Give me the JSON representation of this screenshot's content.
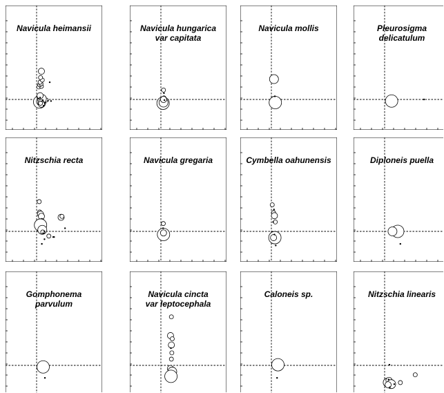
{
  "chart_data": [
    {
      "type": "scatter",
      "title_lines": [
        "Navicula heimansii"
      ],
      "x": [
        0.06,
        0.1,
        0.14,
        0.2,
        0.24,
        0.28,
        0.34,
        0.44,
        0.52,
        0.66,
        0.1,
        0.18,
        0.22,
        0.14,
        0.2,
        0.16,
        0.26,
        0.18,
        0.22,
        0.24,
        0.2,
        0.22,
        0.1,
        0.16,
        0.18,
        0.08,
        0.16,
        0.6,
        0.28,
        0.32
      ],
      "y": [
        0.0,
        -0.05,
        -0.08,
        -0.06,
        -0.04,
        -0.04,
        -0.03,
        -0.02,
        -0.04,
        -0.05,
        0.4,
        0.45,
        0.42,
        0.47,
        0.5,
        0.55,
        0.62,
        0.7,
        0.9,
        0.02,
        -0.1,
        -0.15,
        0.08,
        0.12,
        -0.12,
        0.03,
        0.06,
        0.55,
        -0.02,
        -0.2
      ],
      "size": [
        3,
        4,
        5,
        4,
        3,
        3,
        2,
        2,
        1,
        1,
        2,
        2,
        2,
        2,
        2,
        2,
        2,
        2,
        3,
        4,
        3,
        3,
        2,
        3,
        2,
        1,
        1,
        1,
        1,
        1
      ]
    },
    {
      "type": "scatter",
      "title_lines": [
        "Navicula hungarica",
        "var capitata"
      ],
      "x": [
        0.1,
        0.12,
        0.14,
        0.12,
        0.14,
        0.12,
        0.16
      ],
      "y": [
        -0.12,
        -0.1,
        0.05,
        0.3,
        0.2,
        0.0,
        -0.02
      ],
      "size": [
        5,
        4,
        2,
        2,
        1,
        3,
        1
      ]
    },
    {
      "type": "scatter",
      "title_lines": [
        "Navicula mollis"
      ],
      "x": [
        0.12,
        0.12,
        0.18,
        0.16
      ],
      "y": [
        0.65,
        0.0,
        -0.1,
        0.1
      ],
      "size": [
        4,
        3,
        5,
        1
      ]
    },
    {
      "type": "scatter",
      "title_lines": [
        "Pleurosigma",
        "delicatulum"
      ],
      "x": [
        0.32,
        1.8
      ],
      "y": [
        -0.05,
        0.0
      ],
      "size": [
        5,
        1
      ]
    },
    {
      "type": "scatter",
      "title_lines": [
        "Nitzschia recta"
      ],
      "x": [
        0.12,
        0.14,
        0.18,
        0.22,
        0.24,
        0.18,
        0.26,
        0.28,
        0.3,
        0.36,
        0.56,
        0.76,
        1.12,
        1.16,
        1.3,
        0.36,
        0.24,
        0.8
      ],
      "y": [
        0.95,
        0.62,
        0.55,
        0.48,
        0.35,
        0.2,
        0.05,
        -0.02,
        -0.06,
        0.0,
        -0.15,
        -0.18,
        0.45,
        0.48,
        0.1,
        -0.25,
        -0.4,
        -0.18
      ],
      "size": [
        2,
        2,
        3,
        3,
        2,
        5,
        4,
        2,
        1,
        1,
        2,
        1,
        3,
        2,
        1,
        1,
        1,
        1
      ]
    },
    {
      "type": "scatter",
      "title_lines": [
        "Navicula gregaria"
      ],
      "x": [
        0.12,
        0.12,
        0.11,
        0.1
      ],
      "y": [
        -0.1,
        -0.05,
        0.25,
        0.1
      ],
      "size": [
        5,
        3,
        2,
        1
      ]
    },
    {
      "type": "scatter",
      "title_lines": [
        "Cymbella oahunensis"
      ],
      "x": [
        0.04,
        0.1,
        0.14,
        0.18,
        0.16,
        0.1,
        0.08,
        0.14,
        0.12,
        0.2
      ],
      "y": [
        0.85,
        0.6,
        0.5,
        0.3,
        -0.2,
        -0.2,
        0.3,
        -0.1,
        0.7,
        -0.45
      ],
      "size": [
        2,
        2,
        3,
        2,
        5,
        3,
        1,
        1,
        1,
        1
      ]
    },
    {
      "type": "scatter",
      "title_lines": [
        "Diploneis puella"
      ],
      "x": [
        0.6,
        0.36,
        0.72
      ],
      "y": [
        0.0,
        0.0,
        -0.4
      ],
      "size": [
        5,
        4,
        1
      ]
    },
    {
      "type": "scatter",
      "title_lines": [
        "Gomphonema",
        "parvulum"
      ],
      "x": [
        0.3,
        0.38
      ],
      "y": [
        -0.05,
        -0.4
      ],
      "size": [
        5,
        1
      ]
    },
    {
      "type": "scatter",
      "title_lines": [
        "Navicula cincta",
        "var leptocephala"
      ],
      "x": [
        0.48,
        0.44,
        0.52,
        0.48,
        0.46,
        0.5,
        0.48,
        0.44,
        0.52,
        0.46
      ],
      "y": [
        1.55,
        0.95,
        0.85,
        0.65,
        0.55,
        0.4,
        0.2,
        -0.1,
        -0.2,
        -0.35
      ],
      "size": [
        2,
        3,
        2,
        3,
        1,
        2,
        2,
        3,
        4,
        5
      ]
    },
    {
      "type": "scatter",
      "title_lines": [
        "Caloneis sp."
      ],
      "x": [
        0.3,
        0.26
      ],
      "y": [
        0.02,
        -0.4
      ],
      "size": [
        5,
        1
      ]
    },
    {
      "type": "scatter",
      "title_lines": [
        "Nitzschia linearis"
      ],
      "x": [
        0.14,
        0.2,
        0.3,
        0.44,
        0.72,
        1.4,
        0.16,
        0.18,
        0.22,
        0.24
      ],
      "y": [
        -0.55,
        -0.48,
        -0.6,
        -0.6,
        -0.55,
        -0.3,
        -0.62,
        -0.45,
        0.02,
        -0.7
      ],
      "size": [
        4,
        3,
        4,
        1,
        2,
        2,
        3,
        1,
        1,
        1
      ]
    }
  ]
}
